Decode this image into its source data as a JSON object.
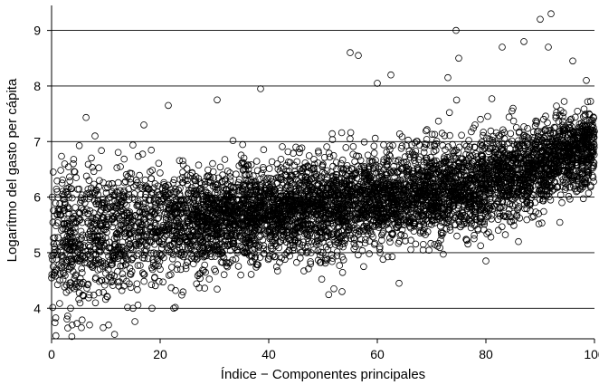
{
  "chart_data": {
    "type": "scatter",
    "title": "",
    "xlabel": "Índice − Componentes principales",
    "ylabel": "Logarítmo del gasto per cápita",
    "xlim": [
      0,
      100
    ],
    "ylim": [
      3.45,
      9.45
    ],
    "x_ticks": [
      "0",
      "20",
      "40",
      "60",
      "80",
      "100"
    ],
    "y_ticks": [
      "4",
      "5",
      "6",
      "7",
      "8",
      "9"
    ],
    "grid": "horizontal",
    "legend": "none",
    "marker": "hollow-circle",
    "marker_color": "#000000",
    "points_approx_count": 6000,
    "trend": {
      "description": "dense cloud rising from about 5.2 at index 0 to about 6.9 at index 100",
      "x": [
        0,
        20,
        40,
        60,
        80,
        100
      ],
      "y_center": [
        5.2,
        5.5,
        5.75,
        5.95,
        6.25,
        6.9
      ]
    },
    "series": [
      {
        "values": [
          [
            74.5,
            9.0
          ],
          [
            92,
            9.3
          ],
          [
            90,
            9.2
          ],
          [
            91.5,
            8.7
          ],
          [
            87,
            8.8
          ],
          [
            83,
            8.7
          ],
          [
            55,
            8.6
          ],
          [
            56.5,
            8.55
          ],
          [
            75,
            8.5
          ],
          [
            96,
            8.45
          ],
          [
            62.5,
            8.2
          ],
          [
            73,
            8.15
          ],
          [
            60,
            8.05
          ],
          [
            38.5,
            7.95
          ],
          [
            21.5,
            7.65
          ],
          [
            30.5,
            7.75
          ],
          [
            17,
            7.3
          ],
          [
            8,
            7.1
          ],
          [
            4,
            6.6
          ],
          [
            2,
            6.05
          ],
          [
            1,
            5.7
          ],
          [
            0.5,
            5.0
          ],
          [
            0.3,
            4.75
          ],
          [
            1.5,
            4.5
          ],
          [
            3.5,
            4.0
          ],
          [
            3.8,
            3.7
          ],
          [
            5.5,
            3.65
          ],
          [
            7,
            3.7
          ],
          [
            9.5,
            3.65
          ],
          [
            10.5,
            3.7
          ],
          [
            15,
            4.0
          ],
          [
            18.5,
            4.0
          ],
          [
            22.5,
            4.0
          ],
          [
            52,
            4.35
          ],
          [
            53.5,
            4.3
          ],
          [
            64,
            4.45
          ],
          [
            80,
            4.85
          ],
          [
            86,
            5.2
          ],
          [
            94,
            5.9
          ],
          [
            97,
            6.3
          ],
          [
            99,
            7.5
          ],
          [
            98.5,
            8.1
          ],
          [
            70,
            6.6
          ],
          [
            45,
            6.9
          ],
          [
            35,
            6.6
          ],
          [
            25,
            6.3
          ],
          [
            12,
            6.1
          ],
          [
            50,
            5.0
          ],
          [
            65,
            5.3
          ],
          [
            30,
            4.7
          ],
          [
            40,
            4.9
          ],
          [
            20,
            4.7
          ],
          [
            85,
            7.6
          ],
          [
            78,
            7.3
          ]
        ]
      }
    ]
  }
}
